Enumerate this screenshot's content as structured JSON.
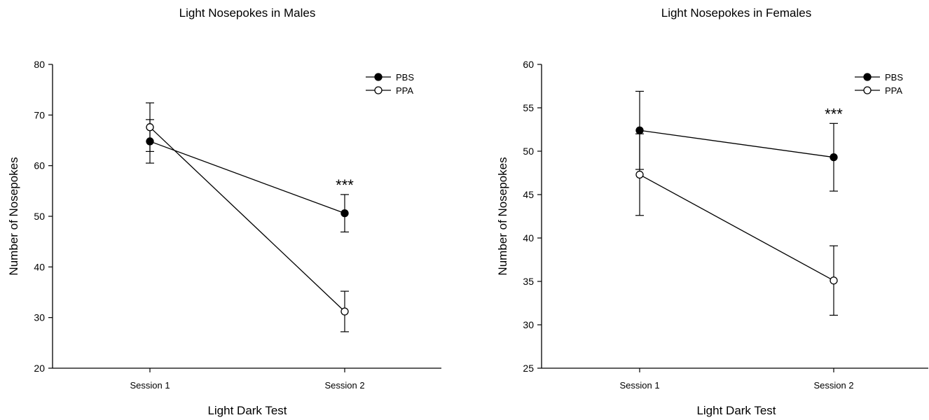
{
  "chart_data": [
    {
      "type": "line",
      "title": "Light Nosepokes in Males",
      "xlabel": "Light Dark Test",
      "ylabel": "Number of Nosepokes",
      "categories": [
        "Session 1",
        "Session 2"
      ],
      "ylim": [
        20,
        80
      ],
      "yticks": [
        "20",
        "30",
        "40",
        "50",
        "60",
        "70",
        "80"
      ],
      "legend_position": "top-right",
      "grid": false,
      "series": [
        {
          "name": "PBS",
          "marker": "filled-circle",
          "values": [
            64.8,
            50.6
          ],
          "errors": [
            4.3,
            3.7
          ]
        },
        {
          "name": "PPA",
          "marker": "open-circle",
          "values": [
            67.6,
            31.2
          ],
          "errors": [
            4.8,
            4.0
          ]
        }
      ],
      "annotations": [
        {
          "text": "***",
          "category": "Session 2"
        }
      ]
    },
    {
      "type": "line",
      "title": "Light Nosepokes in Females",
      "xlabel": "Light Dark Test",
      "ylabel": "Number of Nosepokes",
      "categories": [
        "Session 1",
        "Session 2"
      ],
      "ylim": [
        25,
        60
      ],
      "yticks": [
        "25",
        "30",
        "35",
        "40",
        "45",
        "50",
        "55",
        "60"
      ],
      "legend_position": "top-right",
      "grid": false,
      "series": [
        {
          "name": "PBS",
          "marker": "filled-circle",
          "values": [
            52.4,
            49.3
          ],
          "errors": [
            4.5,
            3.9
          ]
        },
        {
          "name": "PPA",
          "marker": "open-circle",
          "values": [
            47.3,
            35.1
          ],
          "errors": [
            4.7,
            4.0
          ]
        }
      ],
      "annotations": [
        {
          "text": "***",
          "category": "Session 2"
        }
      ]
    }
  ]
}
